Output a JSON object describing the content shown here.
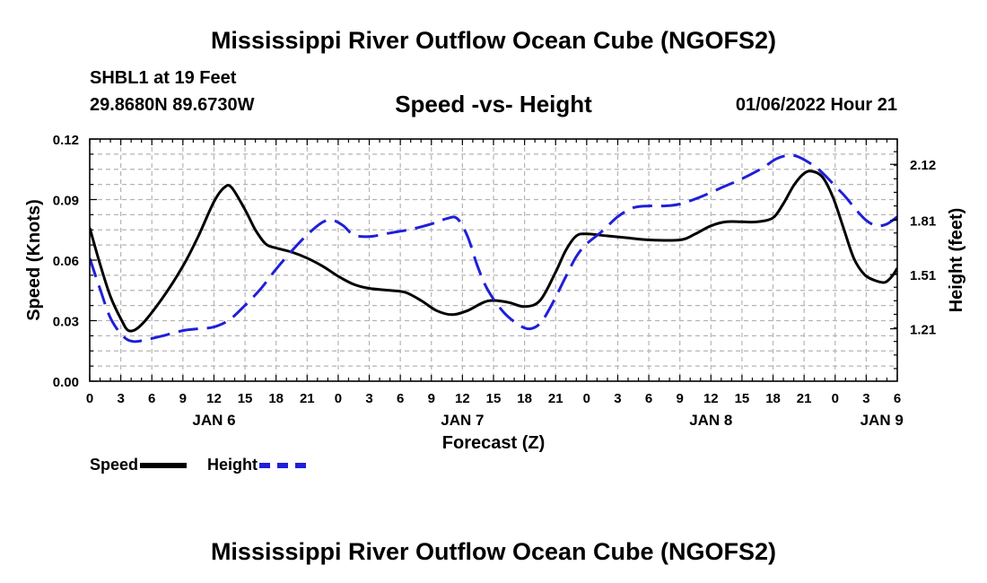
{
  "header": {
    "title_top": "Mississippi River Outflow Ocean Cube (NGOFS2)",
    "title_bottom": "Mississippi River Outflow Ocean Cube (NGOFS2)",
    "station": "SHBL1 at 19 Feet",
    "coords": "29.8680N  89.6730W",
    "datetime": "01/06/2022 Hour 21"
  },
  "colors": {
    "speed": "#000000",
    "height": "#1f1fd8",
    "grid": "#b4b4b4"
  },
  "chart_data": {
    "type": "line",
    "title": "Speed -vs- Height",
    "xlabel": "Forecast (Z)",
    "ylabel": "Speed (Knots)",
    "y2label": "Height (feet)",
    "xlim": [
      0,
      78
    ],
    "ylim": [
      0,
      0.12
    ],
    "y2lim": [
      0.92,
      2.26
    ],
    "x_tick_values": [
      0,
      3,
      6,
      9,
      12,
      15,
      18,
      21,
      24,
      27,
      30,
      33,
      36,
      39,
      42,
      45,
      48,
      51,
      54,
      57,
      60,
      63,
      66,
      69,
      72,
      75,
      78
    ],
    "x_tick_labels": [
      "0",
      "3",
      "6",
      "9",
      "12",
      "15",
      "18",
      "21",
      "0",
      "3",
      "6",
      "9",
      "12",
      "15",
      "18",
      "21",
      "0",
      "3",
      "6",
      "9",
      "12",
      "15",
      "18",
      "21",
      "0",
      "3",
      "6"
    ],
    "y_tick_values": [
      0,
      0.03,
      0.06,
      0.09,
      0.12
    ],
    "y_tick_labels": [
      "0.00",
      "0.03",
      "0.06",
      "0.09",
      "0.12"
    ],
    "y2_tick_values": [
      1.21,
      1.51,
      1.81,
      2.12
    ],
    "y2_tick_labels": [
      "1.21",
      "1.51",
      "1.81",
      "2.12"
    ],
    "day_labels": [
      {
        "label": "JAN 6",
        "x": 12
      },
      {
        "label": "JAN 7",
        "x": 36
      },
      {
        "label": "JAN 8",
        "x": 60
      },
      {
        "label": "JAN 9",
        "x": 76.5
      }
    ],
    "series": [
      {
        "name": "Speed",
        "axis": "left",
        "style": "solid",
        "points": [
          [
            0,
            0.076
          ],
          [
            1,
            0.058
          ],
          [
            2,
            0.042
          ],
          [
            3,
            0.031
          ],
          [
            3.8,
            0.025
          ],
          [
            5,
            0.028
          ],
          [
            7,
            0.041
          ],
          [
            9,
            0.057
          ],
          [
            10.5,
            0.072
          ],
          [
            12,
            0.089
          ],
          [
            13,
            0.096
          ],
          [
            13.7,
            0.096
          ],
          [
            15,
            0.085
          ],
          [
            16,
            0.075
          ],
          [
            17,
            0.068
          ],
          [
            18,
            0.066
          ],
          [
            19.5,
            0.064
          ],
          [
            21,
            0.061
          ],
          [
            22.5,
            0.057
          ],
          [
            24,
            0.052
          ],
          [
            25.5,
            0.048
          ],
          [
            27,
            0.046
          ],
          [
            29,
            0.045
          ],
          [
            30.5,
            0.044
          ],
          [
            32,
            0.04
          ],
          [
            33.5,
            0.035
          ],
          [
            35,
            0.033
          ],
          [
            36.5,
            0.035
          ],
          [
            38,
            0.039
          ],
          [
            39,
            0.04
          ],
          [
            40.5,
            0.039
          ],
          [
            42,
            0.037
          ],
          [
            43.5,
            0.04
          ],
          [
            45,
            0.054
          ],
          [
            46,
            0.065
          ],
          [
            47,
            0.072
          ],
          [
            48,
            0.073
          ],
          [
            50,
            0.072
          ],
          [
            52,
            0.071
          ],
          [
            54,
            0.07
          ],
          [
            57,
            0.07
          ],
          [
            58.5,
            0.073
          ],
          [
            60,
            0.077
          ],
          [
            61.5,
            0.079
          ],
          [
            63,
            0.079
          ],
          [
            64.5,
            0.079
          ],
          [
            66,
            0.081
          ],
          [
            67,
            0.088
          ],
          [
            68,
            0.097
          ],
          [
            69,
            0.103
          ],
          [
            69.8,
            0.104
          ],
          [
            70.8,
            0.101
          ],
          [
            71.8,
            0.091
          ],
          [
            72.8,
            0.076
          ],
          [
            73.8,
            0.061
          ],
          [
            74.8,
            0.053
          ],
          [
            75.8,
            0.05
          ],
          [
            76.8,
            0.049
          ],
          [
            77.5,
            0.052
          ],
          [
            78,
            0.056
          ]
        ]
      },
      {
        "name": "Height",
        "axis": "right",
        "style": "dashed",
        "points": [
          [
            0,
            1.6
          ],
          [
            1,
            1.43
          ],
          [
            2,
            1.27
          ],
          [
            3.2,
            1.17
          ],
          [
            4.2,
            1.14
          ],
          [
            5.5,
            1.15
          ],
          [
            7,
            1.17
          ],
          [
            9,
            1.2
          ],
          [
            10.5,
            1.21
          ],
          [
            12,
            1.22
          ],
          [
            13.5,
            1.26
          ],
          [
            15,
            1.34
          ],
          [
            16.5,
            1.43
          ],
          [
            18,
            1.54
          ],
          [
            19.5,
            1.64
          ],
          [
            21,
            1.73
          ],
          [
            22.5,
            1.8
          ],
          [
            23.5,
            1.81
          ],
          [
            24.5,
            1.78
          ],
          [
            25.5,
            1.73
          ],
          [
            27,
            1.72
          ],
          [
            29,
            1.74
          ],
          [
            31,
            1.76
          ],
          [
            33,
            1.79
          ],
          [
            34.5,
            1.82
          ],
          [
            35.5,
            1.82
          ],
          [
            36.5,
            1.72
          ],
          [
            37.5,
            1.55
          ],
          [
            38.5,
            1.42
          ],
          [
            40,
            1.3
          ],
          [
            41.5,
            1.23
          ],
          [
            42.5,
            1.21
          ],
          [
            43.5,
            1.24
          ],
          [
            44.5,
            1.33
          ],
          [
            46,
            1.5
          ],
          [
            47,
            1.61
          ],
          [
            48,
            1.68
          ],
          [
            49.5,
            1.75
          ],
          [
            51,
            1.83
          ],
          [
            52.5,
            1.88
          ],
          [
            54,
            1.89
          ],
          [
            55.5,
            1.89
          ],
          [
            57,
            1.9
          ],
          [
            59,
            1.94
          ],
          [
            61,
            1.99
          ],
          [
            63,
            2.04
          ],
          [
            65,
            2.1
          ],
          [
            66.3,
            2.15
          ],
          [
            67.5,
            2.17
          ],
          [
            68.5,
            2.16
          ],
          [
            70,
            2.11
          ],
          [
            71,
            2.06
          ],
          [
            72,
            2.0
          ],
          [
            73,
            1.94
          ],
          [
            74,
            1.87
          ],
          [
            75,
            1.81
          ],
          [
            76,
            1.78
          ],
          [
            77,
            1.79
          ],
          [
            78,
            1.83
          ]
        ]
      }
    ],
    "legend": [
      {
        "label": "Speed",
        "color": "#000000",
        "style": "solid"
      },
      {
        "label": "Height",
        "color": "#1f1fd8",
        "style": "dashed"
      }
    ]
  }
}
